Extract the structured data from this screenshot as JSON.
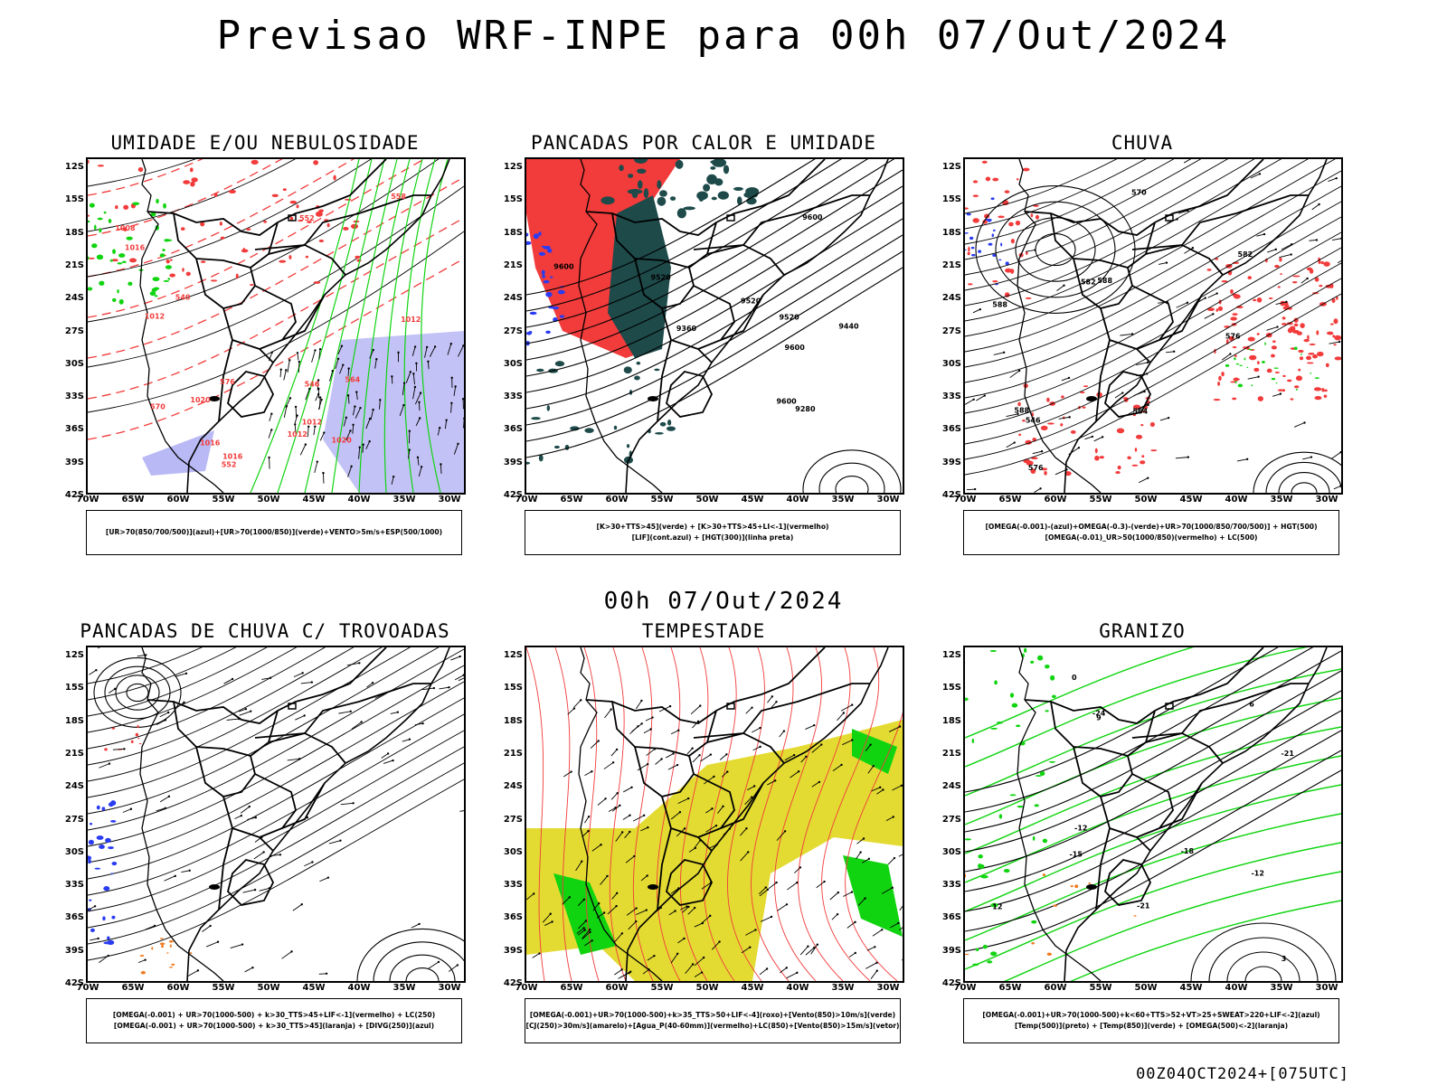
{
  "title": "Previsao WRF-INPE  para 00h 07/Out/2024",
  "mid_date": "00h 07/Out/2024",
  "footer": "00Z04OCT2024+[075UTC]",
  "lat_labels": [
    "12S",
    "15S",
    "18S",
    "21S",
    "24S",
    "27S",
    "30S",
    "33S",
    "36S",
    "39S",
    "42S"
  ],
  "lon_labels": [
    "70W",
    "65W",
    "60W",
    "55W",
    "50W",
    "45W",
    "40W",
    "35W",
    "30W"
  ],
  "colors": {
    "red": "#f23b3b",
    "green": "#11d411",
    "blue": "#2a3cf2",
    "lavender": "#a8a8f2",
    "darkteal": "#1e4a4a",
    "yellow": "#e3db32",
    "orange": "#f07a1e",
    "black": "#000000"
  },
  "panels": [
    {
      "title": "UMIDADE E/OU NEBULOSIDADE",
      "legend": [
        "[UR>70(850/700/500)](azul)+[UR>70(1000/850)](verde)+VENTO>5m/s+ESP(500/1000)"
      ],
      "labels": [
        "1008",
        "1012",
        "1016",
        "1020",
        "1012",
        "1016",
        "1012",
        "552",
        "570",
        "576",
        "564",
        "558",
        "546",
        "540",
        "552",
        "1016",
        "1020",
        "1012"
      ]
    },
    {
      "title": "PANCADAS POR CALOR E UMIDADE",
      "legend": [
        "[K>30+TTS>45](verde) + [K>30+TTS>45+LI<-1](vermelho)",
        "[LIF](cont.azul) + [HGT(300)](linha preta)"
      ],
      "labels": [
        "9600",
        "9520",
        "9600",
        "9600",
        "9520",
        "9520",
        "9440",
        "9360",
        "9280",
        "9600"
      ]
    },
    {
      "title": "CHUVA",
      "legend": [
        "[OMEGA(-0.001)-(azul)+OMEGA(-0.3)-(verde)+UR>70(1000/850/700/500)] + HGT(500)",
        "[OMEGA(-0.01)_UR>50(1000/850)(vermelho) + LC(500)"
      ],
      "labels": [
        "588",
        "588",
        "588",
        "582",
        "582",
        "576",
        "576",
        "570",
        "564",
        "546"
      ]
    },
    {
      "title": "PANCADAS DE CHUVA C/ TROVOADAS",
      "legend": [
        "[OMEGA(-0.001) + UR>70(1000-500) + k>30_TTS>45+LIF<-1](vermelho) + LC(250)",
        "[OMEGA(-0.001) + UR>70(1000-500) + k>30_TTS>45](laranja) + [DIVG(250)](azul)"
      ],
      "labels": []
    },
    {
      "title": "TEMPESTADE",
      "legend": [
        "[OMEGA(-0.001)+UR>70(1000-500)+k>35_TTS>50+LIF<-4](roxo)+[Vento(850)>10m/s](verde)",
        "[CJ(250)>30m/s](amarelo)+[Agua_P(40-60mm)](vermelho)+LC(850)+[Vento(850)>15m/s](vetor)"
      ],
      "labels": []
    },
    {
      "title": "GRANIZO",
      "legend": [
        "[OMEGA(-0.001)+UR>70(1000-500)+k<60+TTS>52+VT>25+SWEAT>220+LIF<-2](azul)",
        "[Temp(500)](preto) + [Temp(850)](verde) + [OMEGA(500)<-2](laranja)"
      ],
      "labels": [
        "12",
        "9",
        "3",
        "-21",
        "-24",
        "-12",
        "-15",
        "-18",
        "-21",
        "0",
        "6",
        "-12"
      ]
    }
  ]
}
